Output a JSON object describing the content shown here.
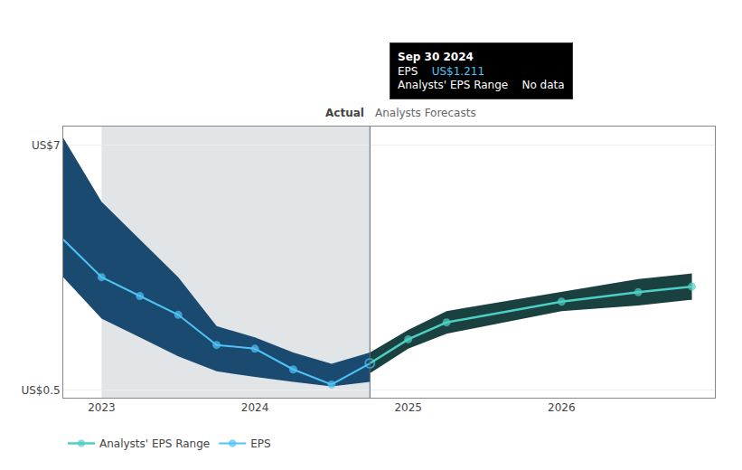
{
  "chart_data": {
    "type": "line",
    "xlim": [
      2022.75,
      2027.0
    ],
    "ylim": [
      0.3,
      7.5
    ],
    "xticks": [
      2023,
      2024,
      2025,
      2026
    ],
    "yticks": [
      {
        "value": 7.0,
        "label": "US$7"
      },
      {
        "value": 0.5,
        "label": "US$0.5"
      }
    ],
    "grid": "y",
    "legend": "bottom",
    "series": [
      {
        "name": "EPS",
        "color": "#4fc3f7",
        "marker": "circle",
        "x": [
          2022.75,
          2023.0,
          2023.25,
          2023.5,
          2023.75,
          2024.0,
          2024.25,
          2024.5,
          2024.75
        ],
        "values": [
          4.5,
          3.5,
          3.0,
          2.5,
          1.7,
          1.6,
          1.05,
          0.65,
          1.211
        ],
        "upper": [
          7.2,
          5.5,
          4.5,
          3.5,
          2.2,
          1.9,
          1.5,
          1.2,
          1.5
        ],
        "lower": [
          3.5,
          2.4,
          1.9,
          1.4,
          1.0,
          0.85,
          0.72,
          0.6,
          0.72
        ],
        "fill_color": "#1a4a70"
      },
      {
        "name": "Analysts' EPS Range",
        "color": "#4dd0c4",
        "marker": "circle",
        "x": [
          2024.75,
          2025.0,
          2025.25,
          2026.0,
          2026.5,
          2026.85
        ],
        "values": [
          1.211,
          1.85,
          2.3,
          2.85,
          3.1,
          3.25
        ],
        "upper": [
          1.5,
          2.1,
          2.6,
          3.1,
          3.45,
          3.6
        ],
        "lower": [
          0.95,
          1.6,
          2.0,
          2.6,
          2.75,
          2.9
        ],
        "fill_color": "#1a4040"
      }
    ],
    "highlight_x": [
      2023.0,
      2024.75
    ],
    "highlight_color": "#132a45",
    "divider_x": 2024.75,
    "divider_color": "#556677",
    "annotations": [
      "Actual",
      "Analysts Forecasts"
    ],
    "tooltip": {
      "title": "Sep 30 2024",
      "rows": [
        {
          "label": "EPS",
          "value": "US$1.211",
          "color": "#4fc3f7"
        },
        {
          "label": "Analysts' EPS Range",
          "value": "No data"
        }
      ]
    }
  }
}
